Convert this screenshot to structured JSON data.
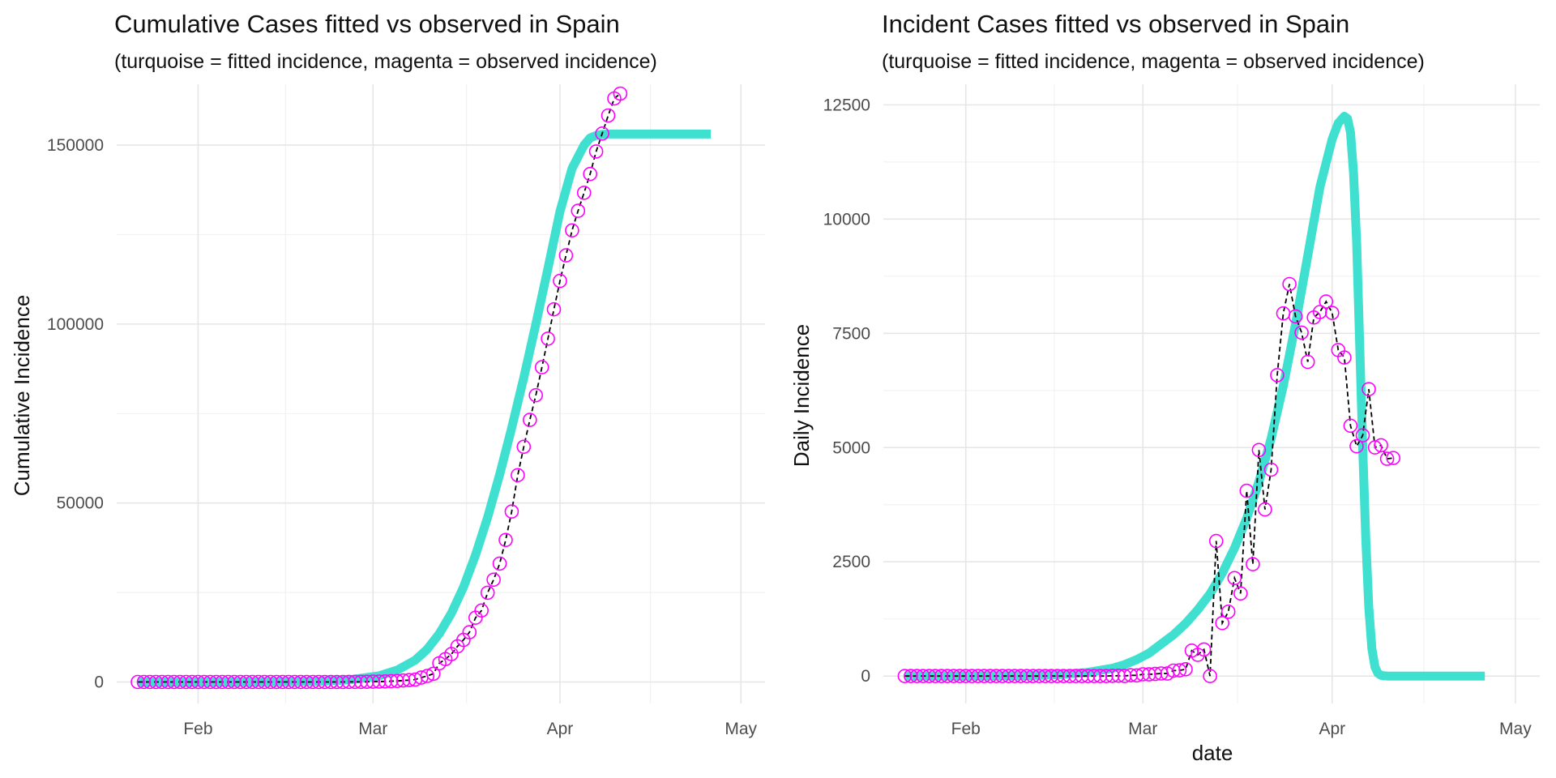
{
  "chart_data": [
    {
      "type": "line",
      "title": "Cumulative Cases fitted vs observed in Spain",
      "subtitle": "(turquoise = fitted incidence, magenta = observed incidence)",
      "xlabel": "",
      "ylabel": "Cumulative Incidence",
      "x_start_date": "2020-01-22",
      "x_ticks": [
        {
          "label": "Feb",
          "day": 10
        },
        {
          "label": "Mar",
          "day": 39
        },
        {
          "label": "Apr",
          "day": 70
        },
        {
          "label": "May",
          "day": 100
        }
      ],
      "xlim_days": [
        -3.5,
        104
      ],
      "ylim": [
        -6000,
        167000
      ],
      "y_ticks": [
        0,
        50000,
        100000,
        150000
      ],
      "fitted_color": "#40E0D0",
      "observed_color": "#FF00FF",
      "line_color": "#000000",
      "grid": true,
      "series": [
        {
          "name": "fitted",
          "x_days": [
            0,
            10,
            20,
            30,
            35,
            40,
            43,
            46,
            48,
            50,
            52,
            54,
            56,
            58,
            60,
            62,
            64,
            66,
            68,
            70,
            72,
            74,
            75,
            76,
            77,
            78,
            80,
            85,
            90,
            95
          ],
          "values": [
            0,
            5,
            30,
            200,
            600,
            1700,
            3300,
            6100,
            9200,
            13500,
            19200,
            26500,
            35500,
            46000,
            58000,
            71000,
            85000,
            100000,
            115500,
            131500,
            143500,
            150000,
            152000,
            152700,
            153000,
            153100,
            153100,
            153100,
            153100,
            153100
          ]
        },
        {
          "name": "observed",
          "x_days": [
            0,
            1,
            2,
            3,
            4,
            5,
            6,
            7,
            8,
            9,
            10,
            11,
            12,
            13,
            14,
            15,
            16,
            17,
            18,
            19,
            20,
            21,
            22,
            23,
            24,
            25,
            26,
            27,
            28,
            29,
            30,
            31,
            32,
            33,
            34,
            35,
            36,
            37,
            38,
            39,
            40,
            41,
            42,
            43,
            44,
            45,
            46,
            47,
            48,
            49,
            50,
            51,
            52,
            53,
            54,
            55,
            56,
            57,
            58,
            59,
            60,
            61,
            62,
            63,
            64,
            65,
            66,
            67,
            68,
            69,
            70,
            71,
            72,
            73,
            74,
            75,
            76,
            77,
            78,
            79,
            80
          ],
          "values": [
            0,
            0,
            0,
            0,
            0,
            0,
            0,
            0,
            0,
            0,
            1,
            1,
            1,
            1,
            1,
            1,
            1,
            1,
            1,
            1,
            2,
            2,
            2,
            2,
            2,
            2,
            2,
            2,
            2,
            2,
            2,
            2,
            2,
            2,
            6,
            13,
            15,
            32,
            45,
            84,
            120,
            165,
            228,
            282,
            401,
            525,
            674,
            1231,
            1695,
            2277,
            5232,
            6391,
            7798,
            9942,
            11748,
            13910,
            17963,
            19980,
            24926,
            28572,
            33089,
            39673,
            47610,
            57786,
            65719,
            73235,
            80110,
            87956,
            95923,
            104118,
            112065,
            119199,
            126168,
            131646,
            136675,
            141942,
            148220,
            153222,
            158273,
            163027,
            164400
          ]
        }
      ]
    },
    {
      "type": "line",
      "title": "Incident Cases fitted vs observed in Spain",
      "subtitle": "(turquoise = fitted incidence, magenta = observed incidence)",
      "xlabel": "date",
      "ylabel": "Daily Incidence",
      "x_start_date": "2020-01-22",
      "x_ticks": [
        {
          "label": "Feb",
          "day": 10
        },
        {
          "label": "Mar",
          "day": 39
        },
        {
          "label": "Apr",
          "day": 70
        },
        {
          "label": "May",
          "day": 100
        }
      ],
      "xlim_days": [
        -3.5,
        104
      ],
      "ylim": [
        -600,
        12950
      ],
      "y_ticks": [
        0,
        2500,
        5000,
        7500,
        10000,
        12500
      ],
      "fitted_color": "#40E0D0",
      "observed_color": "#FF00FF",
      "line_color": "#000000",
      "grid": true,
      "series": [
        {
          "name": "fitted",
          "x_days": [
            0,
            10,
            20,
            25,
            30,
            34,
            36,
            38,
            40,
            42,
            44,
            46,
            48,
            50,
            52,
            54,
            56,
            58,
            60,
            62,
            64,
            66,
            68,
            70,
            71,
            72,
            72.5,
            73,
            73.5,
            74,
            74.5,
            75,
            75.5,
            76,
            76.5,
            77,
            77.5,
            78,
            78.5,
            79,
            80,
            85,
            90,
            95
          ],
          "values": [
            0,
            2,
            10,
            30,
            80,
            170,
            250,
            360,
            500,
            700,
            900,
            1150,
            1450,
            1800,
            2250,
            2800,
            3450,
            4250,
            5200,
            6350,
            7700,
            9200,
            10700,
            11750,
            12100,
            12250,
            12200,
            11900,
            11000,
            9500,
            7300,
            5000,
            3000,
            1500,
            600,
            200,
            60,
            15,
            5,
            0,
            0,
            0,
            0,
            0
          ]
        },
        {
          "name": "observed",
          "x_days": [
            0,
            1,
            2,
            3,
            4,
            5,
            6,
            7,
            8,
            9,
            10,
            11,
            12,
            13,
            14,
            15,
            16,
            17,
            18,
            19,
            20,
            21,
            22,
            23,
            24,
            25,
            26,
            27,
            28,
            29,
            30,
            31,
            32,
            33,
            34,
            35,
            36,
            37,
            38,
            39,
            40,
            41,
            42,
            43,
            44,
            45,
            46,
            47,
            48,
            49,
            50,
            51,
            52,
            53,
            54,
            55,
            56,
            57,
            58,
            59,
            60,
            61,
            62,
            63,
            64,
            65,
            66,
            67,
            68,
            69,
            70,
            71,
            72,
            73,
            74,
            75,
            76,
            77,
            78,
            79,
            80
          ],
          "values": [
            0,
            0,
            0,
            0,
            0,
            0,
            0,
            0,
            0,
            0,
            0,
            0,
            0,
            0,
            0,
            0,
            0,
            0,
            0,
            0,
            0,
            0,
            0,
            0,
            0,
            0,
            0,
            0,
            0,
            0,
            0,
            0,
            0,
            0,
            4,
            7,
            2,
            17,
            13,
            39,
            36,
            45,
            57,
            54,
            119,
            124,
            149,
            557,
            464,
            582,
            0,
            2955,
            1159,
            1407,
            2144,
            1806,
            4053,
            2447,
            4946,
            3646,
            4517,
            6584,
            7937,
            8578,
            7871,
            7516,
            6875,
            7846,
            7967,
            8195,
            7947,
            7134,
            6969,
            5478,
            5029,
            5267,
            6278,
            5002,
            5051,
            4754,
            4770
          ]
        }
      ]
    }
  ]
}
